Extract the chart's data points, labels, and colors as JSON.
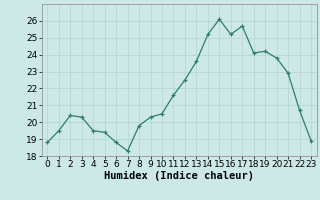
{
  "x": [
    0,
    1,
    2,
    3,
    4,
    5,
    6,
    7,
    8,
    9,
    10,
    11,
    12,
    13,
    14,
    15,
    16,
    17,
    18,
    19,
    20,
    21,
    22,
    23
  ],
  "y": [
    18.8,
    19.5,
    20.4,
    20.3,
    19.5,
    19.4,
    18.8,
    18.3,
    19.8,
    20.3,
    20.5,
    21.6,
    22.5,
    23.6,
    25.2,
    26.1,
    25.2,
    25.7,
    24.1,
    24.2,
    23.8,
    22.9,
    20.7,
    18.9
  ],
  "line_color": "#2e7d6e",
  "marker": "+",
  "marker_size": 3,
  "bg_color": "#cce9e7",
  "grid_color": "#b8d8d5",
  "xlabel": "Humidex (Indice chaleur)",
  "ylim": [
    18,
    27
  ],
  "xlim": [
    -0.5,
    23.5
  ],
  "yticks": [
    18,
    19,
    20,
    21,
    22,
    23,
    24,
    25,
    26
  ],
  "xticks": [
    0,
    1,
    2,
    3,
    4,
    5,
    6,
    7,
    8,
    9,
    10,
    11,
    12,
    13,
    14,
    15,
    16,
    17,
    18,
    19,
    20,
    21,
    22,
    23
  ],
  "tick_fontsize": 6.5,
  "label_fontsize": 7.5
}
